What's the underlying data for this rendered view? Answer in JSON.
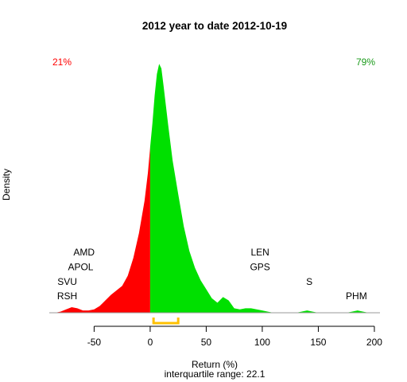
{
  "chart_data": {
    "type": "area",
    "title": "2012  year to date 2012-10-19",
    "xlabel": "Return (%)",
    "ylabel": "Density",
    "footer": "interquartile range: 22.1",
    "xlim": [
      -90,
      205
    ],
    "ylim": [
      0,
      0.0235
    ],
    "x_ticks": [
      -50,
      0,
      50,
      100,
      150,
      200
    ],
    "split_x": 0,
    "negative_color": "#ff0000",
    "positive_color": "#00e000",
    "pct_negative": "21%",
    "pct_positive": "79%",
    "iqr_bracket": {
      "start": 3,
      "end": 25,
      "color": "#ffc000"
    },
    "density": {
      "x": [
        -85,
        -80,
        -75,
        -70,
        -65,
        -60,
        -55,
        -50,
        -45,
        -40,
        -35,
        -30,
        -25,
        -20,
        -15,
        -10,
        -5,
        -2,
        0,
        2,
        4,
        6,
        8,
        10,
        12,
        14,
        16,
        18,
        20,
        25,
        30,
        35,
        40,
        45,
        50,
        55,
        60,
        65,
        70,
        75,
        80,
        85,
        90,
        95,
        100,
        105,
        110,
        115,
        120,
        125,
        130,
        135,
        140,
        145,
        150,
        155,
        160,
        165,
        170,
        175,
        180,
        185,
        190,
        195
      ],
      "y": [
        0,
        0.0001,
        0.0003,
        0.0005,
        0.0004,
        0.0002,
        0.0002,
        0.0003,
        0.0006,
        0.0011,
        0.0016,
        0.002,
        0.0024,
        0.0033,
        0.0049,
        0.0071,
        0.01,
        0.0125,
        0.0148,
        0.0169,
        0.0194,
        0.0213,
        0.0222,
        0.0218,
        0.0202,
        0.0185,
        0.0168,
        0.0152,
        0.0136,
        0.0106,
        0.0077,
        0.0055,
        0.004,
        0.0029,
        0.0021,
        0.0013,
        0.0009,
        0.0014,
        0.0011,
        0.0004,
        0.0003,
        0.0004,
        0.0004,
        0.0003,
        0.0002,
        0.0001,
        0,
        0,
        0,
        0,
        0,
        0.0001,
        0.0002,
        0.0001,
        0,
        0,
        0,
        0,
        0,
        0,
        0.0001,
        0.0002,
        0.0001,
        0
      ]
    },
    "annotations": [
      {
        "text": "RSH",
        "x": -74,
        "y": 0.0012
      },
      {
        "text": "SVU",
        "x": -74,
        "y": 0.0025
      },
      {
        "text": "APOL",
        "x": -62,
        "y": 0.0038
      },
      {
        "text": "AMD",
        "x": -59,
        "y": 0.0051
      },
      {
        "text": "GPS",
        "x": 98,
        "y": 0.0038
      },
      {
        "text": "LEN",
        "x": 98,
        "y": 0.0051
      },
      {
        "text": "S",
        "x": 142,
        "y": 0.0025
      },
      {
        "text": "PHM",
        "x": 184,
        "y": 0.0012
      }
    ]
  }
}
